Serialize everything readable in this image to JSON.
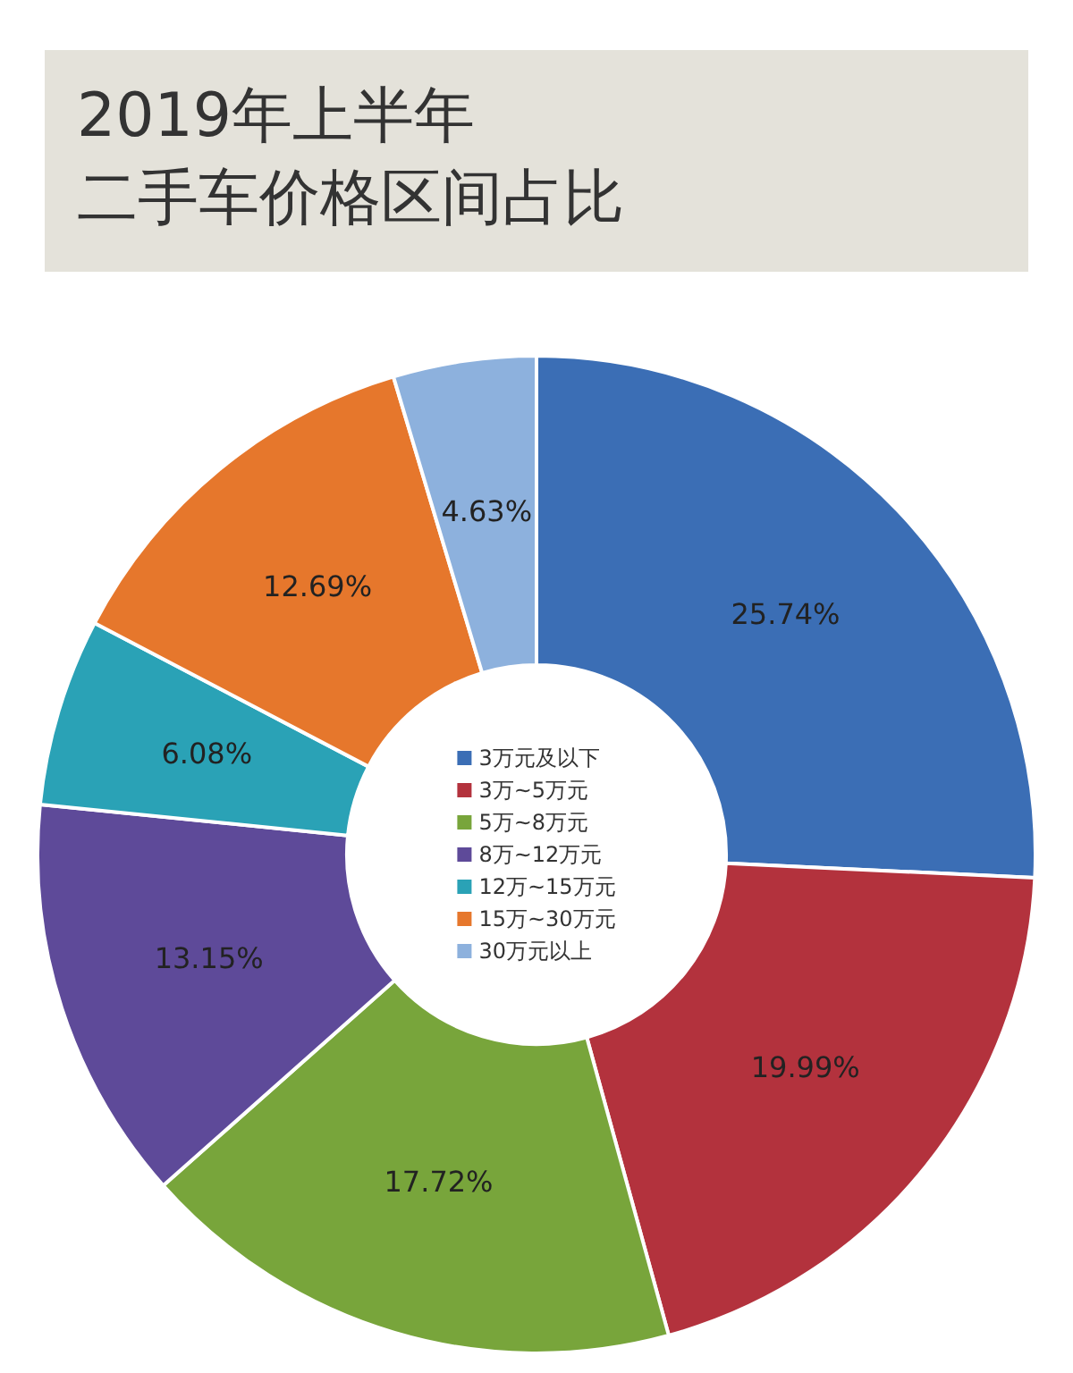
{
  "chart_data": {
    "type": "donut",
    "title": "2019年上半年二手车价格区间占比",
    "categories": [
      "3万元及以下",
      "3万~5万元",
      "5万~8万元",
      "8万~12万元",
      "12万~15万元",
      "15万~30万元",
      "30万元以上"
    ],
    "values": [
      25.74,
      19.99,
      17.72,
      13.15,
      6.08,
      12.69,
      4.63
    ],
    "colors": [
      "#3b6eb5",
      "#b3323d",
      "#78a53b",
      "#5e4a99",
      "#2aa2b6",
      "#e6772c",
      "#8db1dd"
    ],
    "value_labels": [
      "25.74%",
      "19.99%",
      "17.72%",
      "13.15%",
      "6.08%",
      "12.69%",
      "4.63%"
    ],
    "legend": "center"
  }
}
